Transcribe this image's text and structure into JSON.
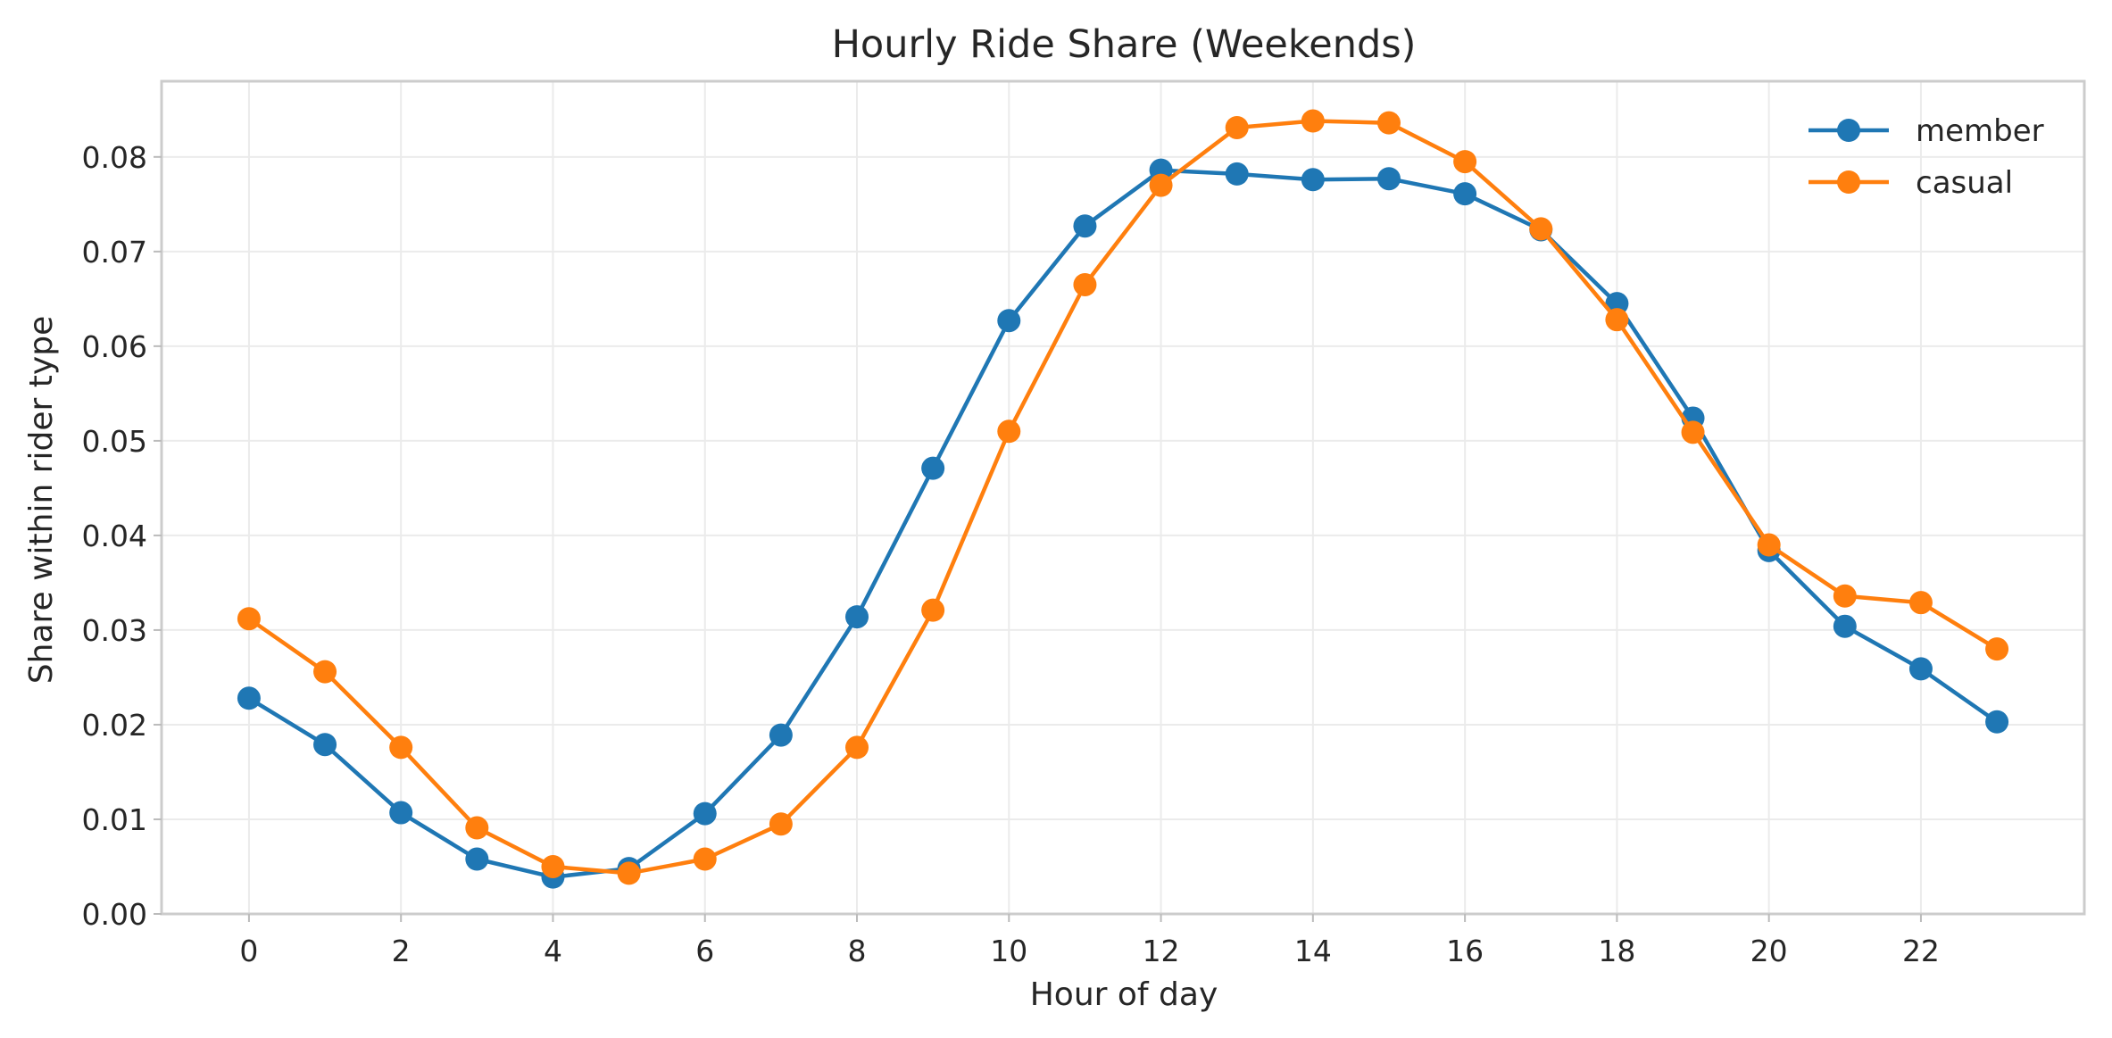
{
  "chart_data": {
    "type": "line",
    "title": "Hourly Ride Share (Weekends)",
    "xlabel": "Hour of day",
    "ylabel": "Share within rider type",
    "x": [
      0,
      1,
      2,
      3,
      4,
      5,
      6,
      7,
      8,
      9,
      10,
      11,
      12,
      13,
      14,
      15,
      16,
      17,
      18,
      19,
      20,
      21,
      22,
      23
    ],
    "xlim": [
      -1.15,
      24.15
    ],
    "ylim": [
      0,
      0.088
    ],
    "xticks": [
      0,
      2,
      4,
      6,
      8,
      10,
      12,
      14,
      16,
      18,
      20,
      22
    ],
    "xtick_labels": [
      "0",
      "2",
      "4",
      "6",
      "8",
      "10",
      "12",
      "14",
      "16",
      "18",
      "20",
      "22"
    ],
    "yticks": [
      0,
      0.01,
      0.02,
      0.03,
      0.04,
      0.05,
      0.06,
      0.07,
      0.08
    ],
    "ytick_labels": [
      "0.00",
      "0.01",
      "0.02",
      "0.03",
      "0.04",
      "0.05",
      "0.06",
      "0.07",
      "0.08"
    ],
    "grid": true,
    "legend_position": "top-right",
    "series": [
      {
        "name": "member",
        "color": "#1f77b4",
        "values": [
          0.0228,
          0.0179,
          0.0107,
          0.0058,
          0.0039,
          0.0048,
          0.0106,
          0.0189,
          0.0314,
          0.0471,
          0.0627,
          0.0727,
          0.0786,
          0.0782,
          0.0776,
          0.0777,
          0.0761,
          0.0723,
          0.0645,
          0.0524,
          0.0384,
          0.0304,
          0.0259,
          0.0203
        ]
      },
      {
        "name": "casual",
        "color": "#ff7f0e",
        "values": [
          0.0312,
          0.0256,
          0.0176,
          0.0091,
          0.005,
          0.0043,
          0.0058,
          0.0095,
          0.0176,
          0.0321,
          0.051,
          0.0665,
          0.077,
          0.0831,
          0.0838,
          0.0836,
          0.0795,
          0.0724,
          0.0628,
          0.0509,
          0.039,
          0.0336,
          0.0329,
          0.028
        ]
      }
    ]
  }
}
